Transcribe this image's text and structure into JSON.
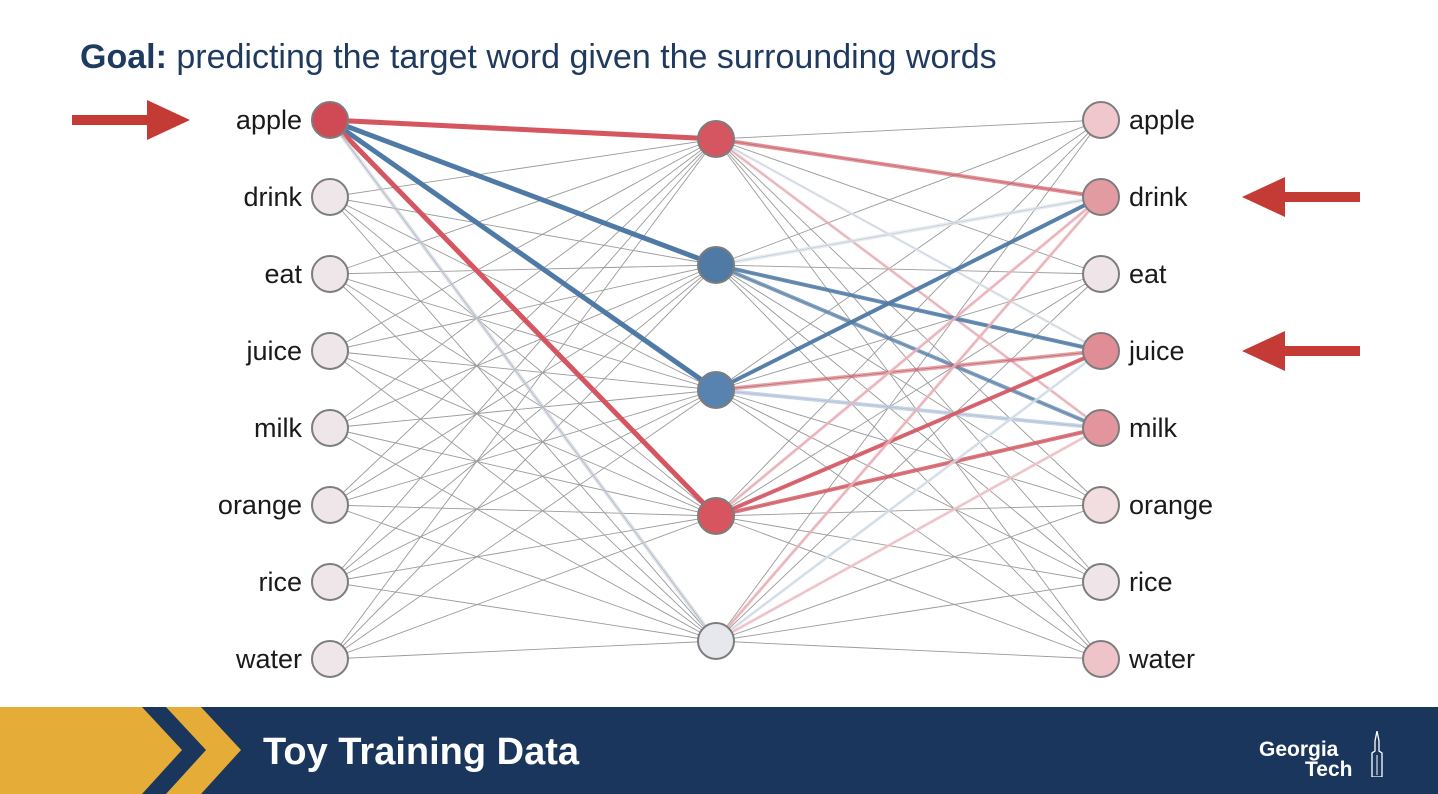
{
  "goal": {
    "label": "Goal:",
    "text": "predicting the target word given the surrounding words"
  },
  "network": {
    "input_words": [
      "apple",
      "drink",
      "eat",
      "juice",
      "milk",
      "orange",
      "rice",
      "water"
    ],
    "output_words": [
      "apple",
      "drink",
      "eat",
      "juice",
      "milk",
      "orange",
      "rice",
      "water"
    ],
    "input_fills": [
      "#cf4a55",
      "#eee6e9",
      "#eee6e9",
      "#eee6e9",
      "#eee6e9",
      "#eee6e9",
      "#eee6e9",
      "#eee6e9"
    ],
    "hidden_fills": [
      "#d55560",
      "#4f7aa6",
      "#5882b0",
      "#d6555f",
      "#e6e8ee"
    ],
    "output_fills": [
      "#efc7cd",
      "#e29ba1",
      "#efe4e7",
      "#e08d95",
      "#e2959c",
      "#f2dde0",
      "#efe4e7",
      "#efc4c9"
    ],
    "highlighted_input": "apple",
    "highlighted_outputs": [
      "drink",
      "juice"
    ],
    "colors": {
      "red": "#d55560",
      "blue": "#4f7aa6",
      "arrow": "#c43a34",
      "gray_edge": "#9a9a9a"
    }
  },
  "footer": {
    "title": "Toy Training Data",
    "logo_line1": "Georgia",
    "logo_line2": "Tech"
  }
}
